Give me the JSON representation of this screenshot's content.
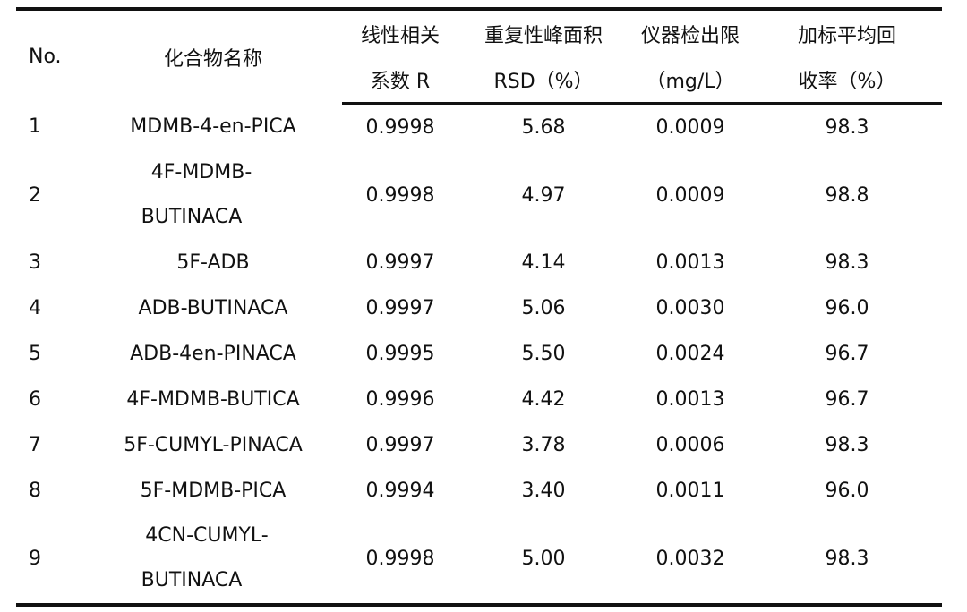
{
  "table": {
    "header": {
      "no": "No.",
      "name": "化合物名称",
      "r_line1": "线性相关",
      "r_line2": "系数 R",
      "rsd_line1": "重复性峰面积",
      "rsd_line2": "RSD（%）",
      "lod_line1": "仪器检出限",
      "lod_line2": "（mg/L）",
      "rec_line1": "加标平均回",
      "rec_line2": "收率（%）"
    },
    "rows": [
      {
        "no": "1",
        "name": "MDMB-4-en-PICA",
        "r": "0.9998",
        "rsd": "5.68",
        "lod": "0.0009",
        "recovery": "98.3"
      },
      {
        "no": "2",
        "name_line1": "4F-MDMB-",
        "name_line2": "BUTINACA",
        "r": "0.9998",
        "rsd": "4.97",
        "lod": "0.0009",
        "recovery": "98.8"
      },
      {
        "no": "3",
        "name": "5F-ADB",
        "r": "0.9997",
        "rsd": "4.14",
        "lod": "0.0013",
        "recovery": "98.3"
      },
      {
        "no": "4",
        "name": "ADB-BUTINACA",
        "r": "0.9997",
        "rsd": "5.06",
        "lod": "0.0030",
        "recovery": "96.0"
      },
      {
        "no": "5",
        "name": "ADB-4en-PINACA",
        "r": "0.9995",
        "rsd": "5.50",
        "lod": "0.0024",
        "recovery": "96.7"
      },
      {
        "no": "6",
        "name": "4F-MDMB-BUTICA",
        "r": "0.9996",
        "rsd": "4.42",
        "lod": "0.0013",
        "recovery": "96.7"
      },
      {
        "no": "7",
        "name": "5F-CUMYL-PINACA",
        "r": "0.9997",
        "rsd": "3.78",
        "lod": "0.0006",
        "recovery": "98.3"
      },
      {
        "no": "8",
        "name": "5F-MDMB-PICA",
        "r": "0.9994",
        "rsd": "3.40",
        "lod": "0.0011",
        "recovery": "96.0"
      },
      {
        "no": "9",
        "name_line1": "4CN-CUMYL-",
        "name_line2": "BUTINACA",
        "r": "0.9998",
        "rsd": "5.00",
        "lod": "0.0032",
        "recovery": "98.3"
      }
    ]
  }
}
